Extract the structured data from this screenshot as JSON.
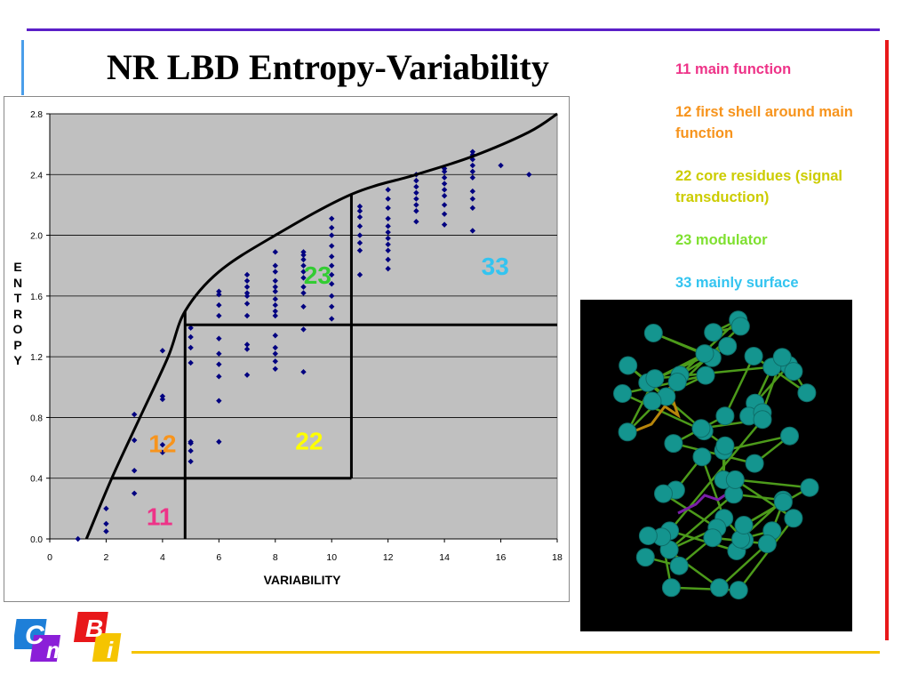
{
  "slide": {
    "title": "NR LBD  Entropy-Variability",
    "legend": [
      {
        "text": "11 main function",
        "color": "#ee3388"
      },
      {
        "text": "12 first shell around main function",
        "color": "#f7941d"
      },
      {
        "text": "22 core residues (signal transduction)",
        "color": "#cccc00"
      },
      {
        "text": "23 modulator",
        "color": "#7fe030"
      },
      {
        "text": "33 mainly surface",
        "color": "#33c4f0"
      }
    ],
    "logo": {
      "letters": [
        "C",
        "m",
        "B",
        "i"
      ]
    },
    "colors": {
      "top_rule": "#5b1fc8",
      "left_rule": "#4a9eea",
      "right_rule": "#e8181a",
      "bottom_rule": "#f5c400"
    }
  },
  "chart_data": {
    "type": "scatter",
    "xlabel": "VARIABILITY",
    "ylabel": "ENTROPY",
    "xlim": [
      0,
      18
    ],
    "ylim": [
      0,
      2.8
    ],
    "xticks": [
      "0",
      "2",
      "4",
      "6",
      "8",
      "10",
      "12",
      "14",
      "16",
      "18"
    ],
    "yticks": [
      "0.0",
      "0.4",
      "0.8",
      "1.2",
      "1.6",
      "2.0",
      "2.4",
      "2.8"
    ],
    "grid": "horizontal",
    "background": "#c0c0c0",
    "marker_color": "#000080",
    "points": [
      [
        1,
        0.0
      ],
      [
        2,
        0.05
      ],
      [
        2,
        0.1
      ],
      [
        2,
        0.2
      ],
      [
        3,
        0.3
      ],
      [
        3,
        0.45
      ],
      [
        3,
        0.65
      ],
      [
        3,
        0.82
      ],
      [
        4,
        0.57
      ],
      [
        4,
        0.62
      ],
      [
        4,
        0.92
      ],
      [
        4,
        0.94
      ],
      [
        4,
        1.24
      ],
      [
        5,
        0.51
      ],
      [
        5,
        0.58
      ],
      [
        5,
        0.63
      ],
      [
        5,
        0.64
      ],
      [
        5,
        1.16
      ],
      [
        5,
        1.26
      ],
      [
        5,
        1.33
      ],
      [
        5,
        1.39
      ],
      [
        6,
        0.64
      ],
      [
        6,
        0.91
      ],
      [
        6,
        1.07
      ],
      [
        6,
        1.15
      ],
      [
        6,
        1.22
      ],
      [
        6,
        1.32
      ],
      [
        6,
        1.47
      ],
      [
        6,
        1.54
      ],
      [
        6,
        1.61
      ],
      [
        6,
        1.63
      ],
      [
        7,
        1.08
      ],
      [
        7,
        1.25
      ],
      [
        7,
        1.28
      ],
      [
        7,
        1.47
      ],
      [
        7,
        1.55
      ],
      [
        7,
        1.6
      ],
      [
        7,
        1.62
      ],
      [
        7,
        1.66
      ],
      [
        7,
        1.7
      ],
      [
        7,
        1.74
      ],
      [
        8,
        1.12
      ],
      [
        8,
        1.17
      ],
      [
        8,
        1.22
      ],
      [
        8,
        1.26
      ],
      [
        8,
        1.34
      ],
      [
        8,
        1.47
      ],
      [
        8,
        1.5
      ],
      [
        8,
        1.54
      ],
      [
        8,
        1.58
      ],
      [
        8,
        1.63
      ],
      [
        8,
        1.66
      ],
      [
        8,
        1.7
      ],
      [
        8,
        1.76
      ],
      [
        8,
        1.8
      ],
      [
        8,
        1.89
      ],
      [
        9,
        1.1
      ],
      [
        9,
        1.38
      ],
      [
        9,
        1.53
      ],
      [
        9,
        1.62
      ],
      [
        9,
        1.66
      ],
      [
        9,
        1.72
      ],
      [
        9,
        1.76
      ],
      [
        9,
        1.8
      ],
      [
        9,
        1.84
      ],
      [
        9,
        1.87
      ],
      [
        9,
        1.89
      ],
      [
        10,
        1.45
      ],
      [
        10,
        1.53
      ],
      [
        10,
        1.6
      ],
      [
        10,
        1.68
      ],
      [
        10,
        1.74
      ],
      [
        10,
        1.8
      ],
      [
        10,
        1.86
      ],
      [
        10,
        1.93
      ],
      [
        10,
        2.0
      ],
      [
        10,
        2.05
      ],
      [
        10,
        2.11
      ],
      [
        11,
        1.74
      ],
      [
        11,
        1.9
      ],
      [
        11,
        1.95
      ],
      [
        11,
        2.0
      ],
      [
        11,
        2.06
      ],
      [
        11,
        2.12
      ],
      [
        11,
        2.16
      ],
      [
        11,
        2.19
      ],
      [
        12,
        1.78
      ],
      [
        12,
        1.84
      ],
      [
        12,
        1.9
      ],
      [
        12,
        1.94
      ],
      [
        12,
        1.98
      ],
      [
        12,
        2.02
      ],
      [
        12,
        2.06
      ],
      [
        12,
        2.11
      ],
      [
        12,
        2.18
      ],
      [
        12,
        2.24
      ],
      [
        12,
        2.3
      ],
      [
        13,
        2.09
      ],
      [
        13,
        2.16
      ],
      [
        13,
        2.2
      ],
      [
        13,
        2.24
      ],
      [
        13,
        2.28
      ],
      [
        13,
        2.32
      ],
      [
        13,
        2.36
      ],
      [
        13,
        2.4
      ],
      [
        14,
        2.07
      ],
      [
        14,
        2.14
      ],
      [
        14,
        2.2
      ],
      [
        14,
        2.26
      ],
      [
        14,
        2.3
      ],
      [
        14,
        2.34
      ],
      [
        14,
        2.38
      ],
      [
        14,
        2.42
      ],
      [
        14,
        2.44
      ],
      [
        15,
        2.03
      ],
      [
        15,
        2.18
      ],
      [
        15,
        2.24
      ],
      [
        15,
        2.29
      ],
      [
        15,
        2.38
      ],
      [
        15,
        2.42
      ],
      [
        15,
        2.46
      ],
      [
        15,
        2.5
      ],
      [
        15,
        2.53
      ],
      [
        15,
        2.55
      ],
      [
        16,
        2.46
      ],
      [
        17,
        2.4
      ]
    ],
    "boundary_curve": [
      [
        1.3,
        0.0
      ],
      [
        2.2,
        0.4
      ],
      [
        3.2,
        0.8
      ],
      [
        4.2,
        1.2
      ],
      [
        4.8,
        1.5
      ],
      [
        6,
        1.76
      ],
      [
        8,
        2.0
      ],
      [
        10.7,
        2.27
      ],
      [
        13,
        2.4
      ],
      [
        15,
        2.52
      ],
      [
        17,
        2.68
      ],
      [
        18,
        2.8
      ]
    ],
    "region_lines": [
      [
        [
          2.2,
          0.4
        ],
        [
          10.7,
          0.4
        ]
      ],
      [
        [
          4.8,
          1.41
        ],
        [
          18,
          1.41
        ]
      ],
      [
        [
          4.8,
          0.0
        ],
        [
          4.8,
          1.5
        ]
      ],
      [
        [
          10.7,
          0.4
        ],
        [
          10.7,
          2.27
        ]
      ]
    ],
    "annotations": [
      {
        "text": "11",
        "x": 3.9,
        "y": 0.09,
        "color": "#ee3388"
      },
      {
        "text": "12",
        "x": 4.0,
        "y": 0.57,
        "color": "#f7941d"
      },
      {
        "text": "22",
        "x": 9.2,
        "y": 0.59,
        "color": "#ffff00"
      },
      {
        "text": "23",
        "x": 9.5,
        "y": 1.68,
        "color": "#33cc33"
      },
      {
        "text": "33",
        "x": 15.8,
        "y": 1.74,
        "color": "#33c4f0"
      }
    ]
  }
}
